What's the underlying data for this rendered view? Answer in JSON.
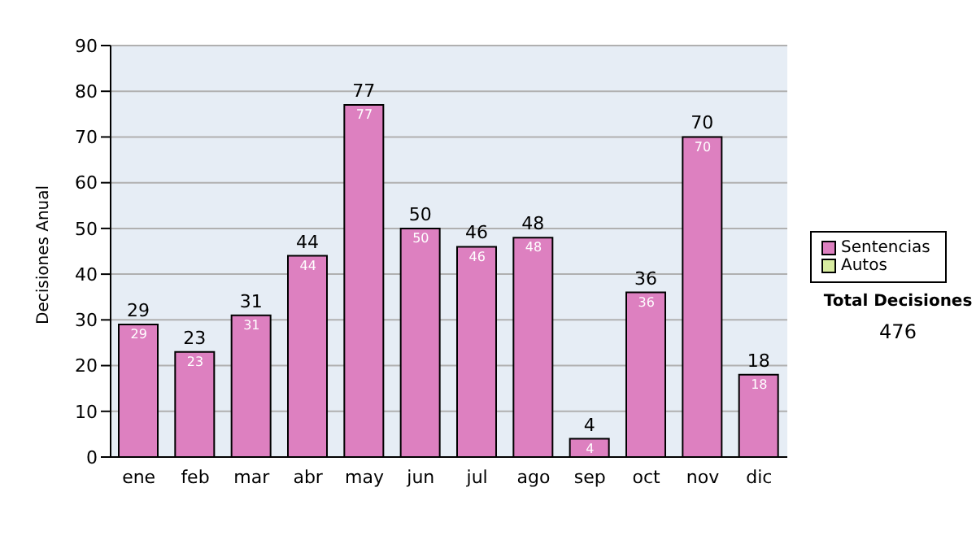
{
  "chart_data": {
    "type": "bar",
    "ylabel": "Decisiones Anual",
    "categories": [
      "ene",
      "feb",
      "mar",
      "abr",
      "may",
      "jun",
      "jul",
      "ago",
      "sep",
      "oct",
      "nov",
      "dic"
    ],
    "series": [
      {
        "name": "Sentencias",
        "color": "#dd80c0",
        "values": [
          29,
          23,
          31,
          44,
          77,
          50,
          46,
          48,
          4,
          36,
          70,
          18
        ]
      },
      {
        "name": "Autos",
        "color": "#d8eca0",
        "values": [
          null,
          null,
          null,
          null,
          null,
          null,
          null,
          null,
          null,
          null,
          null,
          null
        ]
      }
    ],
    "ylim": [
      0,
      90
    ],
    "yticks": [
      0,
      10,
      20,
      30,
      40,
      50,
      60,
      70,
      80,
      90
    ],
    "grid": "y",
    "legend": "right",
    "data_labels": true,
    "annotations": [
      "Total Decisiones",
      "476",
      {
        "text": "29",
        "x": "ene",
        "y": 29
      },
      {
        "text": "23",
        "x": "feb",
        "y": 23
      },
      {
        "text": "31",
        "x": "mar",
        "y": 31
      },
      {
        "text": "44",
        "x": "abr",
        "y": 44
      },
      {
        "text": "77",
        "x": "may",
        "y": 77
      },
      {
        "text": "50",
        "x": "jun",
        "y": 50
      },
      {
        "text": "46",
        "x": "jul",
        "y": 46
      },
      {
        "text": "48",
        "x": "ago",
        "y": 48
      },
      {
        "text": "4",
        "x": "sep",
        "y": 4
      },
      {
        "text": "36",
        "x": "oct",
        "y": 36
      },
      {
        "text": "70",
        "x": "nov",
        "y": 70
      },
      {
        "text": "18",
        "x": "dic",
        "y": 18
      }
    ]
  }
}
